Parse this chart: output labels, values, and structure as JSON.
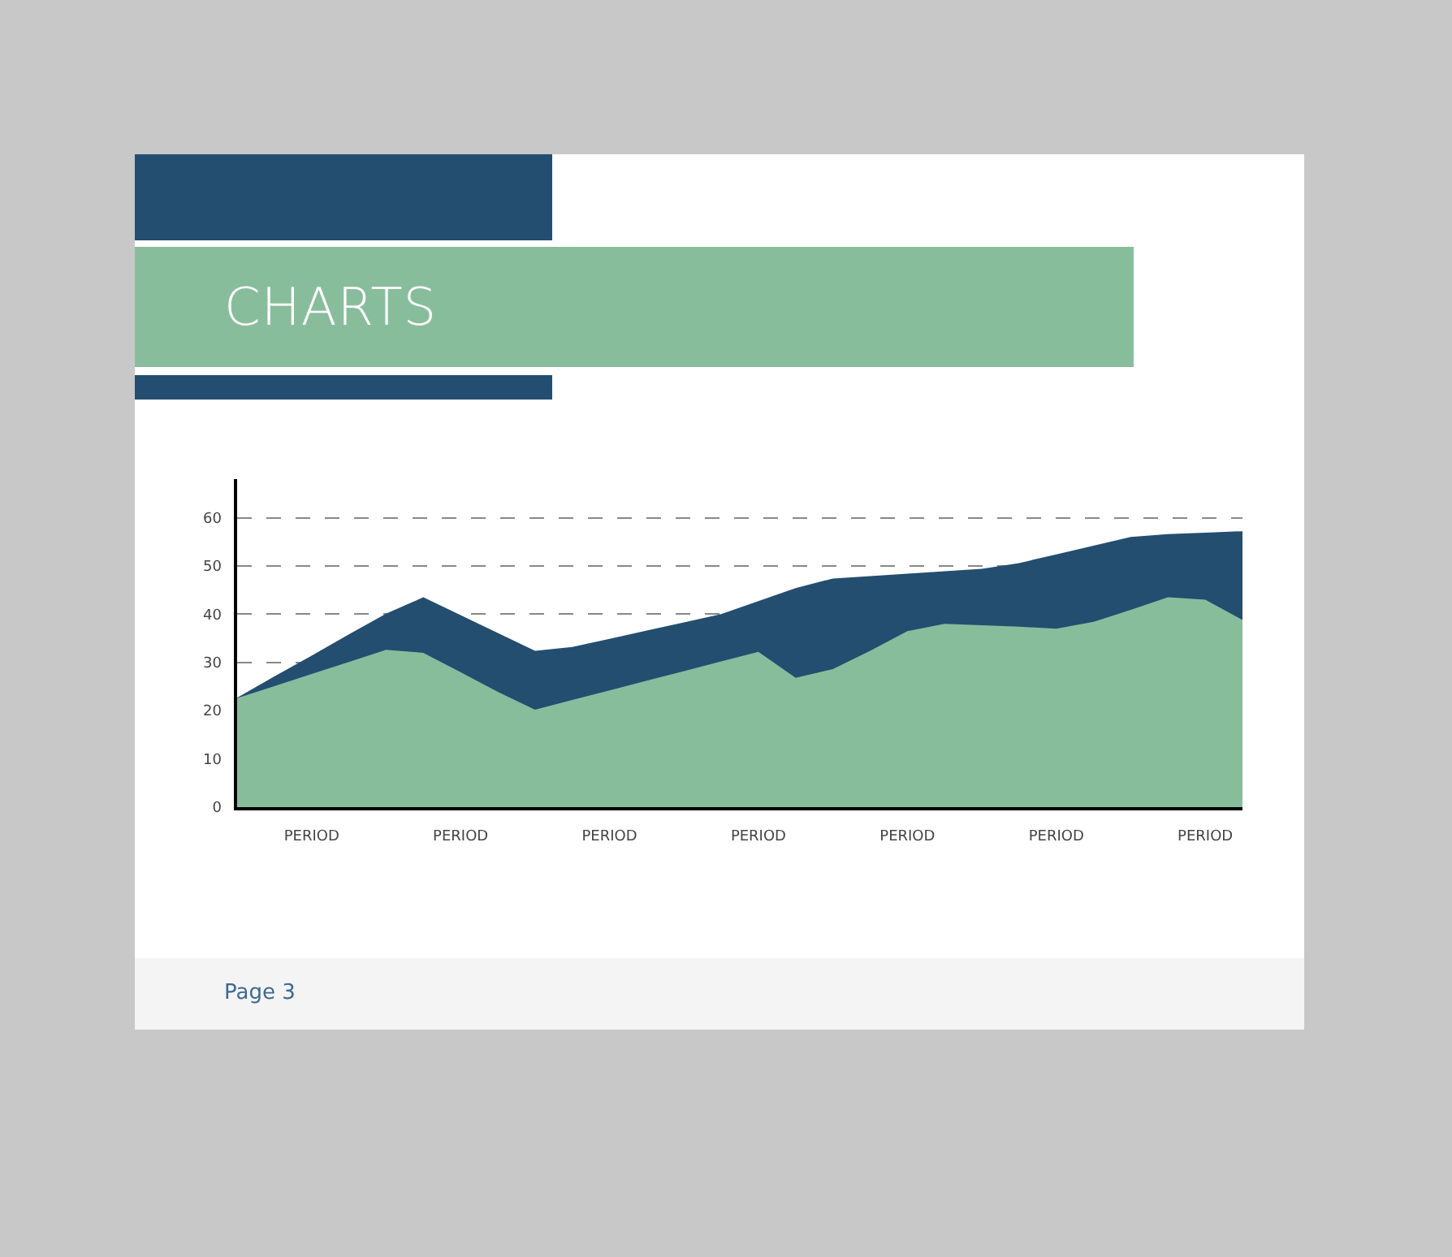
{
  "chart_data": {
    "type": "area",
    "title": "CHARTS",
    "annotations": [
      "Page 3"
    ],
    "categories": [
      null,
      null,
      "PERIOD",
      null,
      null,
      null,
      "PERIOD",
      null,
      null,
      null,
      "PERIOD",
      null,
      null,
      null,
      "PERIOD",
      null,
      null,
      null,
      "PERIOD",
      null,
      null,
      null,
      "PERIOD",
      null,
      null,
      null,
      "PERIOD",
      null
    ],
    "ylim": [
      0,
      68
    ],
    "yticks": [
      0,
      10,
      20,
      30,
      40,
      50,
      60
    ],
    "grid": "y",
    "series": [
      {
        "color": "#234e70",
        "values": [
          22.7,
          27.1,
          31.4,
          35.8,
          40.1,
          43.5,
          39.8,
          36.1,
          32.4,
          33.2,
          34.9,
          36.6,
          38.3,
          40.0,
          42.7,
          45.4,
          47.4,
          47.9,
          48.4,
          48.9,
          49.4,
          50.6,
          52.4,
          54.2,
          56.0,
          56.6,
          56.9,
          57.2
        ]
      },
      {
        "color": "#88bd9c",
        "values": [
          22.6,
          25.1,
          27.6,
          30.1,
          32.6,
          32.0,
          28.0,
          23.9,
          20.2,
          22.2,
          24.2,
          26.2,
          28.2,
          30.2,
          32.2,
          26.8,
          28.6,
          32.4,
          36.5,
          38.0,
          37.7,
          37.4,
          37.0,
          38.4,
          40.9,
          43.5,
          43.0,
          38.8
        ]
      }
    ]
  }
}
